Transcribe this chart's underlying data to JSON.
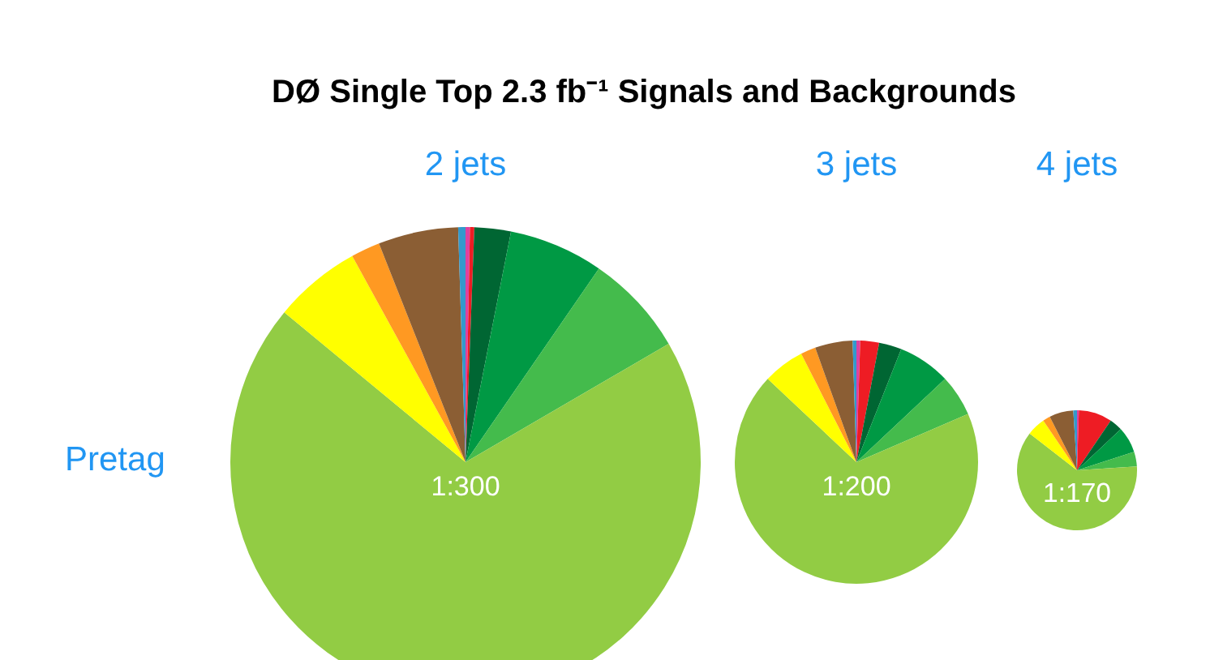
{
  "chart_data": [
    {
      "type": "pie",
      "title": "2 jets",
      "ylabel": "Pretag",
      "annotations": [
        "DØ Single Top 2.3 fb⁻¹ Signals and Backgrounds",
        "1:300"
      ],
      "categories": [
        null,
        null,
        null,
        null,
        null,
        null,
        null,
        null,
        null,
        null
      ],
      "values": [
        0.3,
        0.3,
        2.5,
        6.5,
        7,
        69.4,
        6,
        2,
        5.5,
        0.5
      ],
      "colors": [
        "#e040a0",
        "#ee1c24",
        "#006633",
        "#009944",
        "#44bb4c",
        "#92cc44",
        "#ffff00",
        "#ff9922",
        "#8b5e34",
        "#3399cc"
      ],
      "legend": false
    },
    {
      "type": "pie",
      "title": "3 jets",
      "annotations": [
        "1:200"
      ],
      "categories": [
        null,
        null,
        null,
        null,
        null,
        null,
        null,
        null,
        null,
        null
      ],
      "values": [
        0.5,
        2.5,
        3,
        7,
        5.5,
        68.5,
        5.5,
        2,
        5,
        0.5
      ],
      "colors": [
        "#e040a0",
        "#ee1c24",
        "#006633",
        "#009944",
        "#44bb4c",
        "#92cc44",
        "#ffff00",
        "#ff9922",
        "#8b5e34",
        "#3399cc"
      ],
      "legend": false
    },
    {
      "type": "pie",
      "title": "4 jets",
      "annotations": [
        "1:170"
      ],
      "categories": [
        null,
        null,
        null,
        null,
        null,
        null,
        null,
        null,
        null,
        null
      ],
      "values": [
        0.5,
        9,
        3.5,
        7,
        4,
        61.5,
        5,
        2,
        6.5,
        1
      ],
      "colors": [
        "#e040a0",
        "#ee1c24",
        "#006633",
        "#009944",
        "#44bb4c",
        "#92cc44",
        "#ffff00",
        "#ff9922",
        "#8b5e34",
        "#3399cc"
      ],
      "legend": false
    }
  ]
}
